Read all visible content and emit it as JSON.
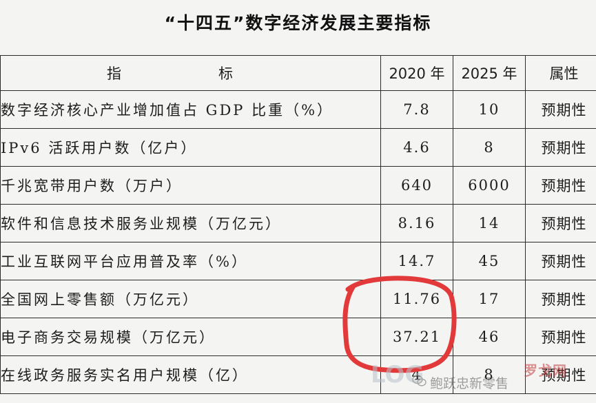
{
  "title": "“十四五”数字经济发展主要指标",
  "table": {
    "headers": {
      "indicator": "指　标",
      "y2020": "2020 年",
      "y2025": "2025 年",
      "attribute": "属性"
    },
    "rows": [
      {
        "indicator": "数字经济核心产业增加值占 GDP 比重（%）",
        "y2020": "7.8",
        "y2025": "10",
        "attribute": "预期性"
      },
      {
        "indicator": "IPv6 活跃用户数（亿户）",
        "y2020": "4.6",
        "y2025": "8",
        "attribute": "预期性"
      },
      {
        "indicator": "千兆宽带用户数（万户）",
        "y2020": "640",
        "y2025": "6000",
        "attribute": "预期性"
      },
      {
        "indicator": "软件和信息技术服务业规模（万亿元）",
        "y2020": "8.16",
        "y2025": "14",
        "attribute": "预期性"
      },
      {
        "indicator": "工业互联网平台应用普及率（%）",
        "y2020": "14.7",
        "y2025": "45",
        "attribute": "预期性"
      },
      {
        "indicator": "全国网上零售额（万亿元）",
        "y2020": "11.76",
        "y2025": "17",
        "attribute": "预期性"
      },
      {
        "indicator": "电子商务交易规模（万亿元）",
        "y2020": "37.21",
        "y2025": "46",
        "attribute": "预期性"
      },
      {
        "indicator": "在线政务服务实名用户规模（亿）",
        "y2020": "4",
        "y2025": "8",
        "attribute": "预期性"
      }
    ]
  },
  "annotation": {
    "color": "#e23a3a"
  },
  "watermark": {
    "logo": "LOG",
    "site": "罗戈网",
    "account": "鲍跃忠新零售"
  }
}
